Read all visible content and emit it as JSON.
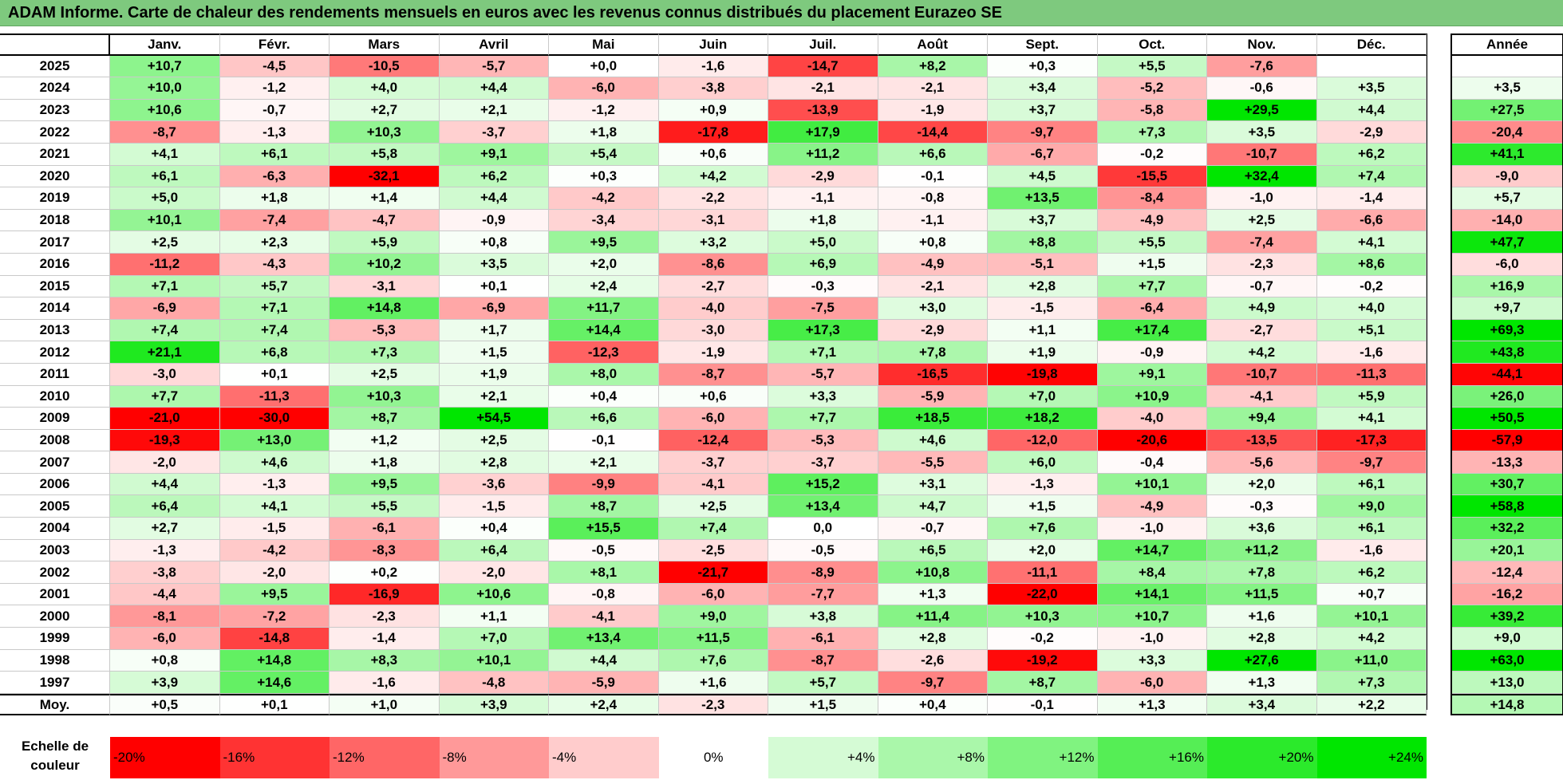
{
  "title": "ADAM Informe. Carte de chaleur des rendements mensuels en euros avec les revenus connus distribués du placement Eurazeo SE",
  "chart_data": {
    "type": "heatmap",
    "columns": [
      "Janv.",
      "Févr.",
      "Mars",
      "Avril",
      "Mai",
      "Juin",
      "Juil.",
      "Août",
      "Sept.",
      "Oct.",
      "Nov.",
      "Déc."
    ],
    "annual_header": "Année",
    "rows": [
      {
        "year": "2025",
        "values": [
          "+10,7",
          "-4,5",
          "-10,5",
          "-5,7",
          "+0,0",
          "-1,6",
          "-14,7",
          "+8,2",
          "+0,3",
          "+5,5",
          "-7,6",
          ""
        ],
        "annual": ""
      },
      {
        "year": "2024",
        "values": [
          "+10,0",
          "-1,2",
          "+4,0",
          "+4,4",
          "-6,0",
          "-3,8",
          "-2,1",
          "-2,1",
          "+3,4",
          "-5,2",
          "-0,6",
          "+3,5"
        ],
        "annual": "+3,5"
      },
      {
        "year": "2023",
        "values": [
          "+10,6",
          "-0,7",
          "+2,7",
          "+2,1",
          "-1,2",
          "+0,9",
          "-13,9",
          "-1,9",
          "+3,7",
          "-5,8",
          "+29,5",
          "+4,4"
        ],
        "annual": "+27,5"
      },
      {
        "year": "2022",
        "values": [
          "-8,7",
          "-1,3",
          "+10,3",
          "-3,7",
          "+1,8",
          "-17,8",
          "+17,9",
          "-14,4",
          "-9,7",
          "+7,3",
          "+3,5",
          "-2,9"
        ],
        "annual": "-20,4"
      },
      {
        "year": "2021",
        "values": [
          "+4,1",
          "+6,1",
          "+5,8",
          "+9,1",
          "+5,4",
          "+0,6",
          "+11,2",
          "+6,6",
          "-6,7",
          "-0,2",
          "-10,7",
          "+6,2"
        ],
        "annual": "+41,1"
      },
      {
        "year": "2020",
        "values": [
          "+6,1",
          "-6,3",
          "-32,1",
          "+6,2",
          "+0,3",
          "+4,2",
          "-2,9",
          "-0,1",
          "+4,5",
          "-15,5",
          "+32,4",
          "+7,4"
        ],
        "annual": "-9,0"
      },
      {
        "year": "2019",
        "values": [
          "+5,0",
          "+1,8",
          "+1,4",
          "+4,4",
          "-4,2",
          "-2,2",
          "-1,1",
          "-0,8",
          "+13,5",
          "-8,4",
          "-1,0",
          "-1,4"
        ],
        "annual": "+5,7"
      },
      {
        "year": "2018",
        "values": [
          "+10,1",
          "-7,4",
          "-4,7",
          "-0,9",
          "-3,4",
          "-3,1",
          "+1,8",
          "-1,1",
          "+3,7",
          "-4,9",
          "+2,5",
          "-6,6"
        ],
        "annual": "-14,0"
      },
      {
        "year": "2017",
        "values": [
          "+2,5",
          "+2,3",
          "+5,9",
          "+0,8",
          "+9,5",
          "+3,2",
          "+5,0",
          "+0,8",
          "+8,8",
          "+5,5",
          "-7,4",
          "+4,1"
        ],
        "annual": "+47,7"
      },
      {
        "year": "2016",
        "values": [
          "-11,2",
          "-4,3",
          "+10,2",
          "+3,5",
          "+2,0",
          "-8,6",
          "+6,9",
          "-4,9",
          "-5,1",
          "+1,5",
          "-2,3",
          "+8,6"
        ],
        "annual": "-6,0"
      },
      {
        "year": "2015",
        "values": [
          "+7,1",
          "+5,7",
          "-3,1",
          "+0,1",
          "+2,4",
          "-2,7",
          "-0,3",
          "-2,1",
          "+2,8",
          "+7,7",
          "-0,7",
          "-0,2"
        ],
        "annual": "+16,9"
      },
      {
        "year": "2014",
        "values": [
          "-6,9",
          "+7,1",
          "+14,8",
          "-6,9",
          "+11,7",
          "-4,0",
          "-7,5",
          "+3,0",
          "-1,5",
          "-6,4",
          "+4,9",
          "+4,0"
        ],
        "annual": "+9,7"
      },
      {
        "year": "2013",
        "values": [
          "+7,4",
          "+7,4",
          "-5,3",
          "+1,7",
          "+14,4",
          "-3,0",
          "+17,3",
          "-2,9",
          "+1,1",
          "+17,4",
          "-2,7",
          "+5,1"
        ],
        "annual": "+69,3"
      },
      {
        "year": "2012",
        "values": [
          "+21,1",
          "+6,8",
          "+7,3",
          "+1,5",
          "-12,3",
          "-1,9",
          "+7,1",
          "+7,8",
          "+1,9",
          "-0,9",
          "+4,2",
          "-1,6"
        ],
        "annual": "+43,8"
      },
      {
        "year": "2011",
        "values": [
          "-3,0",
          "+0,1",
          "+2,5",
          "+1,9",
          "+8,0",
          "-8,7",
          "-5,7",
          "-16,5",
          "-19,8",
          "+9,1",
          "-10,7",
          "-11,3"
        ],
        "annual": "-44,1"
      },
      {
        "year": "2010",
        "values": [
          "+7,7",
          "-11,3",
          "+10,3",
          "+2,1",
          "+0,4",
          "+0,6",
          "+3,3",
          "-5,9",
          "+7,0",
          "+10,9",
          "-4,1",
          "+5,9"
        ],
        "annual": "+26,0"
      },
      {
        "year": "2009",
        "values": [
          "-21,0",
          "-30,0",
          "+8,7",
          "+54,5",
          "+6,6",
          "-6,0",
          "+7,7",
          "+18,5",
          "+18,2",
          "-4,0",
          "+9,4",
          "+4,1"
        ],
        "annual": "+50,5"
      },
      {
        "year": "2008",
        "values": [
          "-19,3",
          "+13,0",
          "+1,2",
          "+2,5",
          "-0,1",
          "-12,4",
          "-5,3",
          "+4,6",
          "-12,0",
          "-20,6",
          "-13,5",
          "-17,3"
        ],
        "annual": "-57,9"
      },
      {
        "year": "2007",
        "values": [
          "-2,0",
          "+4,6",
          "+1,8",
          "+2,8",
          "+2,1",
          "-3,7",
          "-3,7",
          "-5,5",
          "+6,0",
          "-0,4",
          "-5,6",
          "-9,7"
        ],
        "annual": "-13,3"
      },
      {
        "year": "2006",
        "values": [
          "+4,4",
          "-1,3",
          "+9,5",
          "-3,6",
          "-9,9",
          "-4,1",
          "+15,2",
          "+3,1",
          "-1,3",
          "+10,1",
          "+2,0",
          "+6,1"
        ],
        "annual": "+30,7"
      },
      {
        "year": "2005",
        "values": [
          "+6,4",
          "+4,1",
          "+5,5",
          "-1,5",
          "+8,7",
          "+2,5",
          "+13,4",
          "+4,7",
          "+1,5",
          "-4,9",
          "-0,3",
          "+9,0"
        ],
        "annual": "+58,8"
      },
      {
        "year": "2004",
        "values": [
          "+2,7",
          "-1,5",
          "-6,1",
          "+0,4",
          "+15,5",
          "+7,4",
          "0,0",
          "-0,7",
          "+7,6",
          "-1,0",
          "+3,6",
          "+6,1"
        ],
        "annual": "+32,2"
      },
      {
        "year": "2003",
        "values": [
          "-1,3",
          "-4,2",
          "-8,3",
          "+6,4",
          "-0,5",
          "-2,5",
          "-0,5",
          "+6,5",
          "+2,0",
          "+14,7",
          "+11,2",
          "-1,6"
        ],
        "annual": "+20,1"
      },
      {
        "year": "2002",
        "values": [
          "-3,8",
          "-2,0",
          "+0,2",
          "-2,0",
          "+8,1",
          "-21,7",
          "-8,9",
          "+10,8",
          "-11,1",
          "+8,4",
          "+7,8",
          "+6,2"
        ],
        "annual": "-12,4"
      },
      {
        "year": "2001",
        "values": [
          "-4,4",
          "+9,5",
          "-16,9",
          "+10,6",
          "-0,8",
          "-6,0",
          "-7,7",
          "+1,3",
          "-22,0",
          "+14,1",
          "+11,5",
          "+0,7"
        ],
        "annual": "-16,2"
      },
      {
        "year": "2000",
        "values": [
          "-8,1",
          "-7,2",
          "-2,3",
          "+1,1",
          "-4,1",
          "+9,0",
          "+3,8",
          "+11,4",
          "+10,3",
          "+10,7",
          "+1,6",
          "+10,1"
        ],
        "annual": "+39,2"
      },
      {
        "year": "1999",
        "values": [
          "-6,0",
          "-14,8",
          "-1,4",
          "+7,0",
          "+13,4",
          "+11,5",
          "-6,1",
          "+2,8",
          "-0,2",
          "-1,0",
          "+2,8",
          "+4,2"
        ],
        "annual": "+9,0"
      },
      {
        "year": "1998",
        "values": [
          "+0,8",
          "+14,8",
          "+8,3",
          "+10,1",
          "+4,4",
          "+7,6",
          "-8,7",
          "-2,6",
          "-19,2",
          "+3,3",
          "+27,6",
          "+11,0"
        ],
        "annual": "+63,0"
      },
      {
        "year": "1997",
        "values": [
          "+3,9",
          "+14,6",
          "-1,6",
          "-4,8",
          "-5,9",
          "+1,6",
          "+5,7",
          "-9,7",
          "+8,7",
          "-6,0",
          "+1,3",
          "+7,3"
        ],
        "annual": "+13,0"
      }
    ],
    "average": {
      "label": "Moy.",
      "values": [
        "+0,5",
        "+0,1",
        "+1,0",
        "+3,9",
        "+2,4",
        "-2,3",
        "+1,5",
        "+0,4",
        "-0,1",
        "+1,3",
        "+3,4",
        "+2,2"
      ],
      "annual": "+14,8"
    },
    "color_scale": {
      "label": "Echelle de couleur",
      "entries": [
        "-20%",
        "-16%",
        "-12%",
        "-8%",
        "-4%",
        "0%",
        "+4%",
        "+8%",
        "+12%",
        "+16%",
        "+20%",
        "+24%"
      ],
      "stops": [
        -20,
        -16,
        -12,
        -8,
        -4,
        0,
        4,
        8,
        12,
        16,
        20,
        24
      ],
      "negative_color": "#ff0000",
      "positive_color": "#00e600",
      "neutral_color": "#ffffff"
    }
  }
}
